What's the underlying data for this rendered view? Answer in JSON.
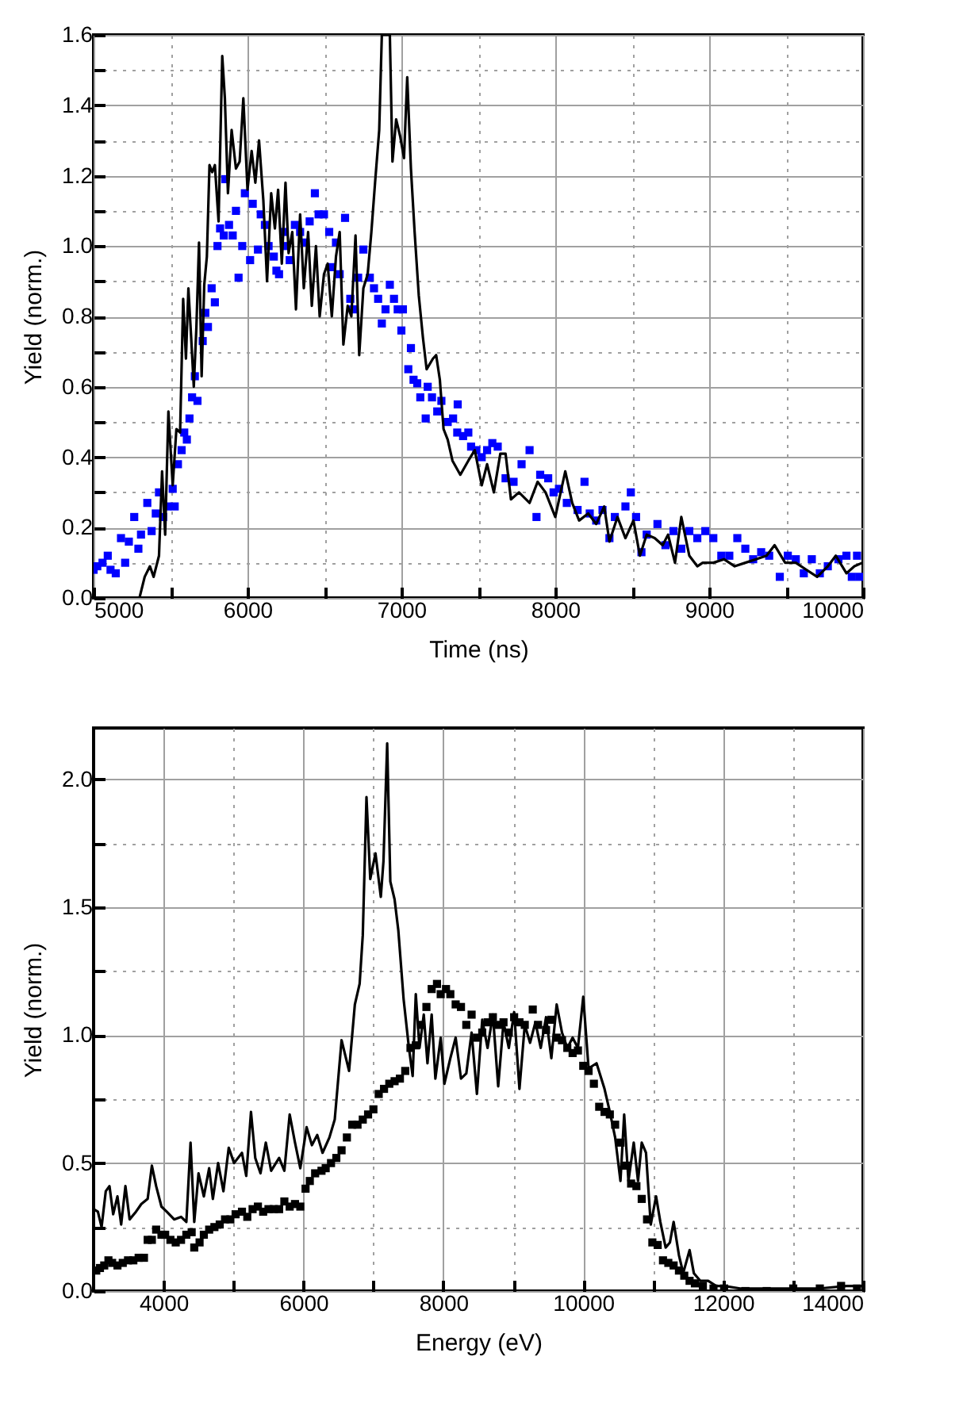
{
  "chart_data": [
    {
      "type": "line",
      "xlabel": "Time (ns)",
      "ylabel": "Yield (norm.)",
      "xlim": [
        5000,
        10000
      ],
      "ylim": [
        0,
        1.6
      ],
      "grid": true,
      "line_style": "solid",
      "xticks": [
        5000,
        {
          "value": 5500,
          "label": null
        },
        6000,
        {
          "value": 6500,
          "label": null
        },
        7000,
        {
          "value": 7500,
          "label": null
        },
        8000,
        {
          "value": 8500,
          "label": null
        },
        9000,
        {
          "value": 9500,
          "label": null
        },
        10000
      ],
      "yticks": [
        {
          "value": 0,
          "label": "0.0"
        },
        {
          "value": 0.1,
          "label": null
        },
        {
          "value": 0.2,
          "label": "0.2"
        },
        {
          "value": 0.3,
          "label": null
        },
        {
          "value": 0.4,
          "label": "0.4"
        },
        {
          "value": 0.5,
          "label": null
        },
        {
          "value": 0.6,
          "label": "0.6"
        },
        {
          "value": 0.7,
          "label": null
        },
        {
          "value": 0.8,
          "label": "0.8"
        },
        {
          "value": 0.9,
          "label": null
        },
        {
          "value": 1.0,
          "label": "1.0"
        },
        {
          "value": 1.1,
          "label": null
        },
        {
          "value": 1.2,
          "label": "1.2"
        },
        {
          "value": 1.3,
          "label": null
        },
        {
          "value": 1.4,
          "label": "1.4"
        },
        {
          "value": 1.5,
          "label": null
        },
        {
          "value": 1.6,
          "label": "1.6"
        }
      ],
      "series": [
        {
          "type": "scatter",
          "marker": "square",
          "color": "#0000ff",
          "x": [
            5000,
            5024,
            5058,
            5092,
            5110,
            5144,
            5178,
            5205,
            5229,
            5264,
            5291,
            5308,
            5349,
            5377,
            5404,
            5425,
            5452,
            5479,
            5514,
            5527,
            5548,
            5572,
            5589,
            5606,
            5623,
            5640,
            5658,
            5675,
            5709,
            5726,
            5743,
            5767,
            5788,
            5805,
            5822,
            5846,
            5856,
            5880,
            5904,
            5925,
            5942,
            5966,
            5983,
            6017,
            6034,
            6068,
            6086,
            6113,
            6137,
            6171,
            6188,
            6205,
            6233,
            6247,
            6274,
            6308,
            6342,
            6377,
            6404,
            6438,
            6462,
            6497,
            6531,
            6548,
            6575,
            6599,
            6634,
            6668,
            6685,
            6719,
            6753,
            6795,
            6822,
            6849,
            6873,
            6897,
            6925,
            6952,
            6976,
            7000,
            7010,
            7045,
            7062,
            7079,
            7103,
            7123,
            7158,
            7171,
            7199,
            7233,
            7260,
            7301,
            7336,
            7363,
            7366,
            7401,
            7435,
            7453,
            7487,
            7522,
            7557,
            7591,
            7626,
            7677,
            7729,
            7781,
            7833,
            7878,
            7902,
            7954,
            7989,
            8024,
            8075,
            8145,
            8190,
            8224,
            8266,
            8307,
            8352,
            8387,
            8456,
            8491,
            8525,
            8560,
            8594,
            8664,
            8716,
            8768,
            8819,
            8871,
            8923,
            8975,
            9027,
            9079,
            9131,
            9183,
            9235,
            9286,
            9338,
            9390,
            9459,
            9511,
            9563,
            9615,
            9667,
            9719,
            9771,
            9840,
            9892,
            9927,
            9961,
            9979
          ],
          "values": [
            0.08,
            0.09,
            0.1,
            0.12,
            0.08,
            0.07,
            0.17,
            0.1,
            0.16,
            0.23,
            0.14,
            0.18,
            0.27,
            0.19,
            0.24,
            0.3,
            0.23,
            0.26,
            0.31,
            0.26,
            0.38,
            0.42,
            0.47,
            0.45,
            0.51,
            0.57,
            0.63,
            0.56,
            0.73,
            0.81,
            0.77,
            0.88,
            0.84,
            1.0,
            1.05,
            1.03,
            1.19,
            1.06,
            1.03,
            1.1,
            0.91,
            1.0,
            1.15,
            0.96,
            1.12,
            0.99,
            1.09,
            1.06,
            1.0,
            0.97,
            0.93,
            0.92,
            1.04,
            1.0,
            0.96,
            1.06,
            1.04,
            1.01,
            1.07,
            1.15,
            1.09,
            1.09,
            1.04,
            0.94,
            1.01,
            0.92,
            1.08,
            0.85,
            0.82,
            0.91,
            0.99,
            0.91,
            0.88,
            0.85,
            0.78,
            0.82,
            0.89,
            0.85,
            0.82,
            0.76,
            0.82,
            0.65,
            0.71,
            0.62,
            0.61,
            0.57,
            0.51,
            0.6,
            0.57,
            0.53,
            0.56,
            0.5,
            0.51,
            0.47,
            0.55,
            0.46,
            0.47,
            0.43,
            0.42,
            0.4,
            0.42,
            0.44,
            0.43,
            0.34,
            0.33,
            0.38,
            0.42,
            0.23,
            0.35,
            0.34,
            0.3,
            0.31,
            0.27,
            0.25,
            0.33,
            0.24,
            0.22,
            0.25,
            0.17,
            0.23,
            0.26,
            0.3,
            0.23,
            0.13,
            0.18,
            0.21,
            0.15,
            0.19,
            0.14,
            0.19,
            0.17,
            0.19,
            0.17,
            0.12,
            0.12,
            0.17,
            0.14,
            0.11,
            0.13,
            0.12,
            0.06,
            0.12,
            0.11,
            0.07,
            0.11,
            0.07,
            0.09,
            0.11,
            0.12,
            0.06,
            0.12,
            0.06
          ]
        },
        {
          "type": "line",
          "marker": "none",
          "color": "#000000",
          "x": [
            5298,
            5332,
            5366,
            5390,
            5425,
            5445,
            5465,
            5486,
            5514,
            5538,
            5562,
            5582,
            5600,
            5616,
            5634,
            5651,
            5668,
            5685,
            5702,
            5719,
            5736,
            5753,
            5771,
            5788,
            5812,
            5836,
            5853,
            5873,
            5897,
            5925,
            5949,
            5973,
            6000,
            6027,
            6051,
            6075,
            6103,
            6127,
            6154,
            6178,
            6199,
            6223,
            6247,
            6267,
            6291,
            6315,
            6342,
            6366,
            6394,
            6418,
            6445,
            6469,
            6497,
            6521,
            6548,
            6575,
            6599,
            6623,
            6651,
            6675,
            6702,
            6726,
            6753,
            6781,
            6805,
            6829,
            6856,
            6873,
            6925,
            6942,
            6966,
            6993,
            7017,
            7038,
            7062,
            7086,
            7113,
            7140,
            7164,
            7205,
            7226,
            7250,
            7274,
            7301,
            7332,
            7383,
            7435,
            7477,
            7522,
            7557,
            7601,
            7643,
            7677,
            7712,
            7764,
            7833,
            7885,
            7937,
            8000,
            8065,
            8110,
            8155,
            8214,
            8266,
            8318,
            8352,
            8404,
            8456,
            8508,
            8550,
            8594,
            8646,
            8698,
            8733,
            8778,
            8819,
            8871,
            8923,
            8958,
            9027,
            9096,
            9166,
            9235,
            9304,
            9373,
            9425,
            9494,
            9563,
            9632,
            9702,
            9771,
            9823,
            9892,
            9944,
            9996
          ],
          "values": [
            0.0,
            0.06,
            0.09,
            0.06,
            0.12,
            0.36,
            0.18,
            0.53,
            0.32,
            0.48,
            0.47,
            0.85,
            0.68,
            0.88,
            0.74,
            0.6,
            0.77,
            1.01,
            0.63,
            0.89,
            0.97,
            1.23,
            1.21,
            1.23,
            1.07,
            1.54,
            1.42,
            1.15,
            1.33,
            1.22,
            1.24,
            1.42,
            1.16,
            1.27,
            1.18,
            1.3,
            1.13,
            0.9,
            1.15,
            1.05,
            1.16,
            0.95,
            1.18,
            0.98,
            1.04,
            0.82,
            1.09,
            0.88,
            1.04,
            0.83,
            1.0,
            0.8,
            0.92,
            0.95,
            0.8,
            0.97,
            1.04,
            0.72,
            0.83,
            0.8,
            1.03,
            0.69,
            0.88,
            0.92,
            1.04,
            1.18,
            1.33,
            1.6,
            1.6,
            1.24,
            1.36,
            1.31,
            1.25,
            1.48,
            1.22,
            1.04,
            0.86,
            0.74,
            0.65,
            0.68,
            0.69,
            0.62,
            0.48,
            0.45,
            0.39,
            0.35,
            0.39,
            0.42,
            0.32,
            0.38,
            0.3,
            0.41,
            0.41,
            0.28,
            0.3,
            0.27,
            0.33,
            0.3,
            0.23,
            0.36,
            0.27,
            0.22,
            0.24,
            0.21,
            0.26,
            0.16,
            0.23,
            0.17,
            0.22,
            0.12,
            0.18,
            0.17,
            0.15,
            0.18,
            0.1,
            0.23,
            0.12,
            0.09,
            0.1,
            0.1,
            0.11,
            0.09,
            0.1,
            0.11,
            0.12,
            0.15,
            0.1,
            0.1,
            0.08,
            0.06,
            0.09,
            0.12,
            0.07,
            0.09,
            0.1
          ]
        }
      ]
    },
    {
      "type": "line",
      "xlabel": "Energy (eV)",
      "ylabel": "Yield (norm.)",
      "xlim": [
        3000,
        14000
      ],
      "ylim": [
        0,
        2.2
      ],
      "grid": true,
      "line_style": "solid",
      "xticks": [
        4000,
        {
          "value": 5000,
          "label": null
        },
        6000,
        {
          "value": 7000,
          "label": null
        },
        8000,
        {
          "value": 9000,
          "label": null
        },
        10000,
        {
          "value": 11000,
          "label": null
        },
        12000,
        {
          "value": 13000,
          "label": null
        },
        14000
      ],
      "yticks": [
        {
          "value": 0,
          "label": "0.0"
        },
        {
          "value": 0.25,
          "label": null
        },
        {
          "value": 0.5,
          "label": "0.5"
        },
        {
          "value": 0.75,
          "label": null
        },
        {
          "value": 1.0,
          "label": "1.0"
        },
        {
          "value": 1.25,
          "label": null
        },
        {
          "value": 1.5,
          "label": "1.5"
        },
        {
          "value": 1.75,
          "label": null
        },
        {
          "value": 2.0,
          "label": "2.0"
        }
      ],
      "series": [
        {
          "type": "scatter",
          "marker": "square",
          "color": "#000000",
          "x": [
            3038,
            3091,
            3152,
            3212,
            3265,
            3341,
            3417,
            3492,
            3568,
            3644,
            3720,
            3773,
            3833,
            3894,
            3970,
            4023,
            4098,
            4174,
            4250,
            4326,
            4402,
            4439,
            4515,
            4576,
            4652,
            4727,
            4803,
            4879,
            4955,
            5030,
            5121,
            5197,
            5273,
            5349,
            5424,
            5500,
            5576,
            5652,
            5727,
            5803,
            5879,
            5955,
            6030,
            6091,
            6167,
            6258,
            6318,
            6394,
            6470,
            6545,
            6621,
            6697,
            6773,
            6848,
            6924,
            7000,
            7076,
            7152,
            7227,
            7303,
            7379,
            7455,
            7530,
            7606,
            7682,
            7758,
            7833,
            7909,
            7962,
            8038,
            8100,
            8176,
            8252,
            8328,
            8404,
            8480,
            8556,
            8632,
            8708,
            8784,
            8860,
            8936,
            9012,
            9088,
            9164,
            9278,
            9354,
            9468,
            9544,
            9620,
            9696,
            9772,
            9848,
            9924,
            10000,
            10076,
            10152,
            10228,
            10304,
            10380,
            10456,
            10532,
            10608,
            10684,
            10760,
            10836,
            10912,
            10988,
            11064,
            11140,
            11216,
            11292,
            11368,
            11444,
            11520,
            11596,
            11710,
            11862,
            12014,
            12318,
            12622,
            13002,
            13382,
            13686,
            13914
          ],
          "values": [
            0.08,
            0.09,
            0.1,
            0.12,
            0.11,
            0.1,
            0.11,
            0.12,
            0.12,
            0.13,
            0.13,
            0.2,
            0.2,
            0.24,
            0.22,
            0.22,
            0.2,
            0.19,
            0.2,
            0.22,
            0.23,
            0.17,
            0.19,
            0.22,
            0.24,
            0.25,
            0.26,
            0.28,
            0.28,
            0.3,
            0.31,
            0.29,
            0.32,
            0.33,
            0.31,
            0.32,
            0.32,
            0.32,
            0.35,
            0.33,
            0.34,
            0.33,
            0.4,
            0.43,
            0.46,
            0.47,
            0.48,
            0.5,
            0.52,
            0.55,
            0.6,
            0.65,
            0.65,
            0.67,
            0.69,
            0.71,
            0.77,
            0.79,
            0.81,
            0.82,
            0.83,
            0.86,
            0.95,
            0.96,
            1.04,
            1.11,
            1.18,
            1.2,
            1.16,
            1.18,
            1.16,
            1.12,
            1.11,
            1.04,
            1.08,
            0.99,
            1.01,
            1.05,
            1.07,
            1.04,
            1.05,
            1.01,
            1.07,
            1.05,
            1.04,
            1.1,
            1.04,
            1.02,
            1.06,
            0.99,
            0.98,
            0.95,
            0.93,
            0.94,
            0.88,
            0.86,
            0.81,
            0.72,
            0.7,
            0.69,
            0.65,
            0.58,
            0.49,
            0.42,
            0.41,
            0.36,
            0.28,
            0.19,
            0.18,
            0.12,
            0.11,
            0.1,
            0.08,
            0.06,
            0.04,
            0.03,
            0.02,
            0.01,
            0.01,
            0.0,
            0.0,
            0.01,
            0.01,
            0.02,
            0.01
          ]
        },
        {
          "type": "line",
          "marker": "none",
          "color": "#000000",
          "x": [
            3000,
            3061,
            3114,
            3174,
            3227,
            3280,
            3341,
            3394,
            3455,
            3515,
            3606,
            3682,
            3773,
            3833,
            3894,
            3970,
            4045,
            4152,
            4250,
            4326,
            4386,
            4439,
            4500,
            4576,
            4652,
            4705,
            4780,
            4856,
            4932,
            5008,
            5121,
            5182,
            5250,
            5311,
            5386,
            5462,
            5538,
            5652,
            5727,
            5803,
            5879,
            5955,
            6045,
            6121,
            6197,
            6273,
            6371,
            6447,
            6545,
            6652,
            6735,
            6803,
            6848,
            6901,
            6955,
            7030,
            7106,
            7144,
            7197,
            7242,
            7303,
            7356,
            7432,
            7508,
            7561,
            7606,
            7659,
            7720,
            7773,
            7833,
            7886,
            7962,
            8015,
            8100,
            8176,
            8252,
            8328,
            8404,
            8480,
            8556,
            8632,
            8708,
            8784,
            8860,
            8936,
            9012,
            9088,
            9164,
            9240,
            9316,
            9392,
            9468,
            9544,
            9620,
            9696,
            9772,
            9848,
            9924,
            10000,
            10076,
            10190,
            10304,
            10380,
            10456,
            10532,
            10585,
            10646,
            10722,
            10783,
            10836,
            10897,
            10965,
            11041,
            11102,
            11178,
            11239,
            11292,
            11368,
            11429,
            11520,
            11581,
            11672,
            11786,
            11900,
            12014,
            12242,
            12622,
            13002,
            13382,
            13762,
            13990
          ],
          "values": [
            0.32,
            0.31,
            0.25,
            0.39,
            0.41,
            0.3,
            0.37,
            0.26,
            0.41,
            0.28,
            0.31,
            0.34,
            0.36,
            0.49,
            0.41,
            0.33,
            0.31,
            0.28,
            0.29,
            0.27,
            0.58,
            0.27,
            0.46,
            0.37,
            0.48,
            0.36,
            0.5,
            0.39,
            0.56,
            0.5,
            0.54,
            0.45,
            0.7,
            0.52,
            0.46,
            0.58,
            0.47,
            0.52,
            0.47,
            0.69,
            0.58,
            0.48,
            0.64,
            0.57,
            0.61,
            0.54,
            0.6,
            0.67,
            0.98,
            0.86,
            1.12,
            1.2,
            1.39,
            1.93,
            1.61,
            1.71,
            1.54,
            1.68,
            2.14,
            1.6,
            1.53,
            1.41,
            1.14,
            0.95,
            0.84,
            1.16,
            0.95,
            1.08,
            0.89,
            1.08,
            0.83,
            0.99,
            0.81,
            0.91,
            0.99,
            0.83,
            0.85,
            1.01,
            0.77,
            1.06,
            0.95,
            1.08,
            0.8,
            1.05,
            0.95,
            1.09,
            0.79,
            1.04,
            0.97,
            1.05,
            0.95,
            1.07,
            0.91,
            1.12,
            1.01,
            0.95,
            0.99,
            0.95,
            1.15,
            0.87,
            0.89,
            0.79,
            0.7,
            0.6,
            0.43,
            0.69,
            0.43,
            0.58,
            0.43,
            0.58,
            0.54,
            0.26,
            0.37,
            0.27,
            0.17,
            0.19,
            0.27,
            0.14,
            0.07,
            0.16,
            0.07,
            0.04,
            0.04,
            0.02,
            0.02,
            0.01,
            0.01,
            0.01,
            0.01,
            0.02,
            0.02
          ]
        }
      ]
    }
  ]
}
